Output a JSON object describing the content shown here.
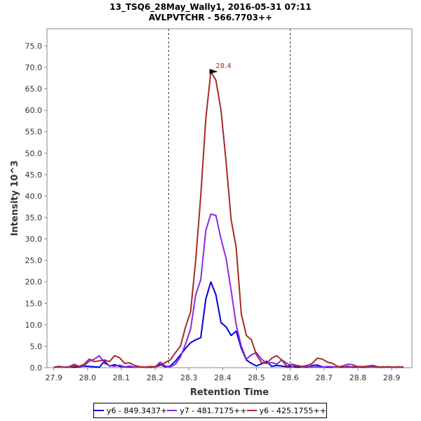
{
  "chart_data": {
    "type": "line",
    "title": "13_TSQ6_28May_Wally1, 2016-05-31 07:11",
    "subtitle": "AVLPVTCHR - 566.7703++",
    "xlabel": "Retention Time",
    "ylabel": "Intensity 10^3",
    "xlim": [
      27.88,
      28.96
    ],
    "ylim": [
      0,
      79
    ],
    "xticks": [
      "27.9",
      "28.0",
      "28.1",
      "28.2",
      "28.3",
      "28.4",
      "28.5",
      "28.6",
      "28.7",
      "28.8",
      "28.9"
    ],
    "yticks": [
      "0.0",
      "5.0",
      "10.0",
      "15.0",
      "20.0",
      "25.0",
      "30.0",
      "35.0",
      "40.0",
      "45.0",
      "50.0",
      "55.0",
      "60.0",
      "65.0",
      "70.0",
      "75.0"
    ],
    "vlines": [
      28.24,
      28.6
    ],
    "peak_annotation": {
      "label": "28.4",
      "x": 28.39,
      "y": 69.0
    },
    "x": [
      27.9,
      27.915,
      27.93,
      27.945,
      27.96,
      27.975,
      27.99,
      28.005,
      28.02,
      28.035,
      28.05,
      28.065,
      28.08,
      28.095,
      28.11,
      28.125,
      28.14,
      28.155,
      28.17,
      28.185,
      28.2,
      28.215,
      28.23,
      28.245,
      28.26,
      28.275,
      28.29,
      28.305,
      28.32,
      28.335,
      28.35,
      28.365,
      28.38,
      28.395,
      28.41,
      28.425,
      28.44,
      28.455,
      28.47,
      28.485,
      28.5,
      28.515,
      28.53,
      28.545,
      28.56,
      28.575,
      28.59,
      28.605,
      28.62,
      28.635,
      28.65,
      28.665,
      28.68,
      28.695,
      28.71,
      28.725,
      28.74,
      28.755,
      28.77,
      28.785,
      28.8,
      28.815,
      28.83,
      28.845,
      28.86,
      28.875,
      28.89,
      28.905,
      28.92,
      28.935
    ],
    "series": [
      {
        "name": "y6 - 849.3437+",
        "color": "#0000dd",
        "values": [
          0.1,
          0.3,
          0.1,
          0.2,
          0.1,
          0.2,
          0.4,
          0.3,
          0.2,
          0.1,
          1.5,
          0.4,
          0.7,
          0.3,
          0.2,
          0.2,
          0.1,
          0.2,
          0.1,
          0.1,
          0.2,
          0.8,
          0.2,
          0.4,
          1.5,
          3.0,
          4.5,
          5.8,
          6.5,
          7.0,
          16.0,
          20.0,
          17.0,
          10.5,
          9.5,
          7.5,
          8.5,
          4.5,
          1.8,
          1.0,
          0.4,
          0.9,
          1.5,
          0.3,
          0.5,
          0.4,
          0.2,
          0.3,
          0.1,
          0.2,
          0.1,
          0.5,
          0.6,
          0.2,
          0.1,
          0.1,
          0.2,
          0.1,
          0.3,
          0.1,
          0.2,
          0.1,
          0.1,
          0.2,
          0.1,
          0.1,
          0.2,
          0.1,
          0.1,
          0.2
        ]
      },
      {
        "name": "y7 - 481.7175++",
        "color": "#8a2be2",
        "values": [
          0.1,
          0.2,
          0.1,
          0.2,
          0.8,
          0.3,
          0.5,
          1.5,
          2.0,
          2.8,
          1.0,
          0.5,
          0.3,
          0.6,
          0.2,
          0.4,
          0.1,
          0.2,
          0.1,
          0.3,
          0.2,
          1.3,
          0.4,
          0.2,
          0.8,
          2.5,
          5.5,
          9.0,
          17.0,
          20.5,
          32.0,
          35.8,
          35.5,
          30.0,
          25.5,
          18.0,
          10.0,
          5.0,
          2.0,
          3.0,
          3.5,
          2.0,
          1.0,
          1.2,
          0.8,
          1.8,
          1.0,
          0.3,
          0.5,
          0.2,
          0.3,
          0.1,
          0.2,
          0.1,
          0.3,
          0.2,
          0.1,
          0.4,
          0.8,
          0.7,
          0.2,
          0.3,
          0.1,
          0.2,
          0.1,
          0.2,
          0.1,
          0.1,
          0.2,
          0.1
        ]
      },
      {
        "name": "y6 - 425.1755++",
        "color": "#a52a2a",
        "values": [
          0.1,
          0.2,
          0.1,
          0.1,
          0.4,
          0.3,
          0.8,
          2.0,
          1.4,
          1.6,
          1.8,
          1.4,
          2.8,
          2.3,
          1.0,
          1.1,
          0.5,
          0.2,
          0.1,
          0.2,
          0.2,
          0.5,
          1.2,
          1.8,
          3.5,
          5.0,
          9.5,
          13.0,
          25.0,
          40.0,
          58.0,
          69.0,
          67.0,
          60.0,
          48.0,
          34.5,
          28.0,
          12.5,
          7.5,
          6.5,
          3.0,
          1.2,
          1.0,
          2.2,
          2.8,
          1.8,
          0.3,
          0.8,
          0.5,
          0.3,
          0.5,
          1.0,
          2.2,
          2.0,
          1.3,
          1.0,
          0.3,
          0.2,
          0.1,
          0.2,
          0.3,
          0.2,
          0.4,
          0.5,
          0.2,
          0.1,
          0.2,
          0.1,
          0.2,
          0.1
        ]
      }
    ]
  }
}
